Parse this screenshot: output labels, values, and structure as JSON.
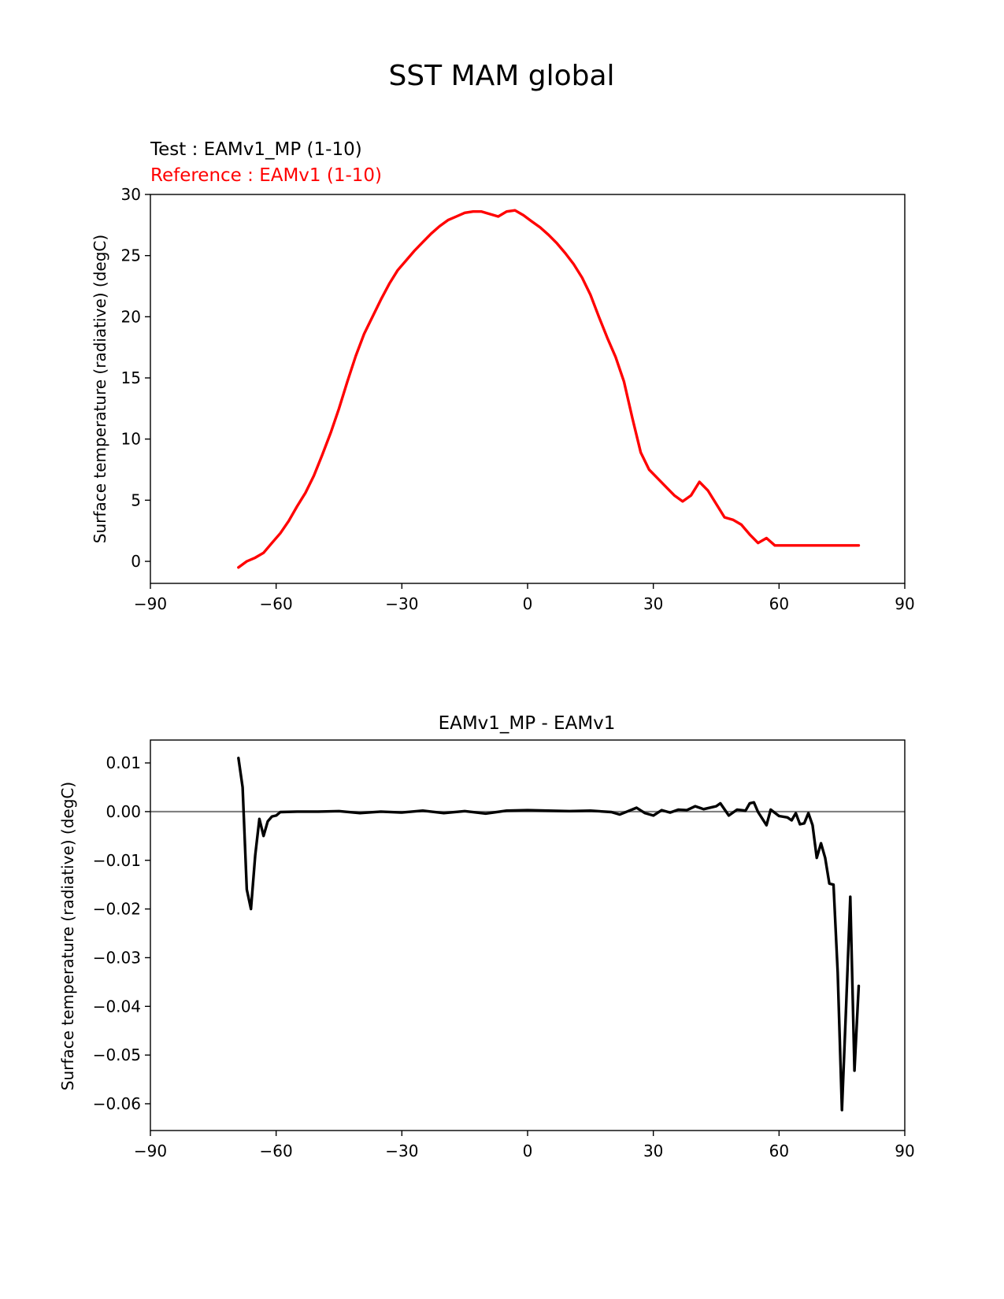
{
  "figure": {
    "title": "SST MAM global"
  },
  "chart_data": [
    {
      "type": "line",
      "title": "",
      "annotations": {
        "test": "Test : EAMv1_MP (1-10)",
        "reference": "Reference : EAMv1 (1-10)"
      },
      "xlabel": "",
      "ylabel": "Surface temperature (radiative) (degC)",
      "xlim": [
        -90,
        90
      ],
      "ylim": [
        -1.8,
        30
      ],
      "xticks": [
        -90,
        -60,
        -30,
        0,
        30,
        60,
        90
      ],
      "xtick_labels": [
        "−90",
        "−60",
        "−30",
        "0",
        "30",
        "60",
        "90"
      ],
      "yticks": [
        0,
        5,
        10,
        15,
        20,
        25,
        30
      ],
      "ytick_labels": [
        "0",
        "5",
        "10",
        "15",
        "20",
        "25",
        "30"
      ],
      "grid": false,
      "series": [
        {
          "color": "#ff0000",
          "x": [
            -69,
            -67,
            -65,
            -63,
            -61,
            -59,
            -57,
            -55,
            -53,
            -51,
            -49,
            -47,
            -45,
            -43,
            -41,
            -39,
            -37,
            -35,
            -33,
            -31,
            -29,
            -27,
            -25,
            -23,
            -21,
            -19,
            -17,
            -15,
            -13,
            -11,
            -9,
            -7,
            -5,
            -3,
            -1,
            1,
            3,
            5,
            7,
            9,
            11,
            13,
            15,
            17,
            19,
            21,
            23,
            25,
            27,
            29,
            31,
            33,
            35,
            37,
            39,
            41,
            43,
            45,
            47,
            49,
            51,
            53,
            55,
            57,
            59,
            61,
            63,
            65,
            67,
            69,
            71,
            73,
            75,
            77,
            79
          ],
          "y": [
            -0.5,
            0.0,
            0.3,
            0.7,
            1.5,
            2.3,
            3.3,
            4.5,
            5.6,
            7.0,
            8.7,
            10.5,
            12.5,
            14.7,
            16.8,
            18.6,
            20.0,
            21.4,
            22.7,
            23.8,
            24.6,
            25.4,
            26.1,
            26.8,
            27.4,
            27.9,
            28.2,
            28.5,
            28.6,
            28.6,
            28.4,
            28.2,
            28.6,
            28.7,
            28.3,
            27.8,
            27.3,
            26.7,
            26.0,
            25.2,
            24.3,
            23.2,
            21.8,
            20.0,
            18.3,
            16.7,
            14.7,
            11.7,
            8.9,
            7.5,
            6.8,
            6.1,
            5.4,
            4.9,
            5.4,
            6.5,
            5.8,
            4.7,
            3.6,
            3.4,
            3.0,
            2.2,
            1.5,
            1.9,
            1.3,
            1.3,
            1.3,
            1.3,
            1.3,
            1.3,
            1.3,
            1.3,
            1.3,
            1.3,
            1.3
          ]
        }
      ]
    },
    {
      "type": "line",
      "title": "EAMv1_MP - EAMv1",
      "xlabel": "",
      "ylabel": "Surface temperature (radiative) (degC)",
      "xlim": [
        -90,
        90
      ],
      "ylim": [
        -0.0655,
        0.0147
      ],
      "xticks": [
        -90,
        -60,
        -30,
        0,
        30,
        60,
        90
      ],
      "xtick_labels": [
        "−90",
        "−60",
        "−30",
        "0",
        "30",
        "60",
        "90"
      ],
      "yticks": [
        0.01,
        0.0,
        -0.01,
        -0.02,
        -0.03,
        -0.04,
        -0.05,
        -0.06
      ],
      "ytick_labels": [
        "0.01",
        "0.00",
        "−0.01",
        "−0.02",
        "−0.03",
        "−0.04",
        "−0.05",
        "−0.06"
      ],
      "grid": false,
      "zero_line_color": "#808080",
      "series": [
        {
          "color": "#000000",
          "x": [
            -69,
            -68,
            -67,
            -66,
            -65,
            -64,
            -63,
            -62,
            -61,
            -60,
            -59,
            -55,
            -50,
            -45,
            -40,
            -35,
            -30,
            -25,
            -20,
            -15,
            -10,
            -5,
            0,
            5,
            10,
            15,
            20,
            22,
            24,
            26,
            28,
            30,
            32,
            34,
            36,
            38,
            39,
            40,
            42,
            44,
            45,
            46,
            48,
            50,
            52,
            53,
            54,
            55,
            57,
            58,
            60,
            62,
            63,
            64,
            65,
            66,
            67,
            68,
            69,
            70,
            71,
            72,
            73,
            74,
            75,
            76,
            77,
            78,
            79
          ],
          "y": [
            0.011,
            0.005,
            -0.016,
            -0.02,
            -0.009,
            -0.0015,
            -0.005,
            -0.002,
            -0.001,
            -0.0008,
            -0.0001,
            0.0,
            0.0,
            0.0001,
            -0.0003,
            0.0,
            -0.0002,
            0.0002,
            -0.0003,
            0.0001,
            -0.0004,
            0.0002,
            0.0003,
            0.0002,
            0.0001,
            0.0002,
            -0.0001,
            -0.0006,
            0.0001,
            0.0008,
            -0.0003,
            -0.0008,
            0.0003,
            -0.0002,
            0.0004,
            0.0003,
            0.0007,
            0.0011,
            0.0005,
            0.0009,
            0.0011,
            0.0017,
            -0.0008,
            0.0004,
            0.0002,
            0.0017,
            0.0019,
            -0.0001,
            -0.0028,
            0.0004,
            -0.0009,
            -0.0012,
            -0.0018,
            -0.0003,
            -0.0026,
            -0.0024,
            -0.0003,
            -0.0028,
            -0.0095,
            -0.0065,
            -0.0095,
            -0.0148,
            -0.015,
            -0.033,
            -0.0613,
            -0.04,
            -0.0175,
            -0.0532,
            -0.0358
          ]
        }
      ]
    }
  ]
}
